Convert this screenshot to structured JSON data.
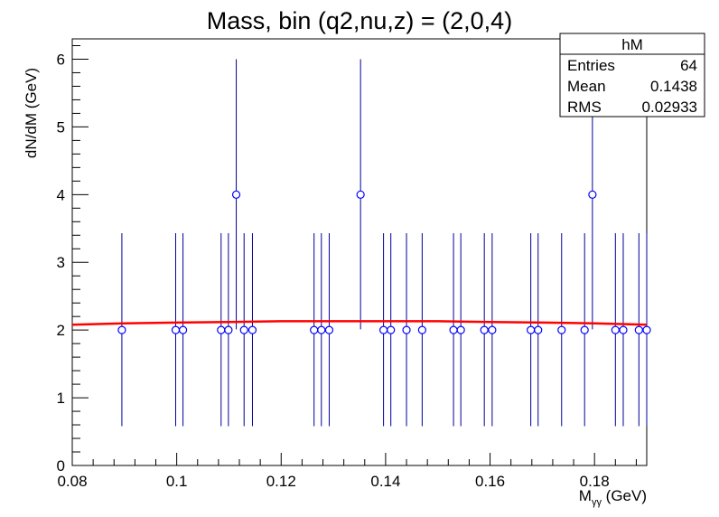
{
  "chart_data": {
    "type": "scatter",
    "title": "Mass, bin (q2,nu,z) = (2,0,4)",
    "xlabel_main": "M",
    "xlabel_sub": "γγ",
    "xlabel_unit": " (GeV)",
    "ylabel": "dN/dM (GeV)",
    "xlim": [
      0.08,
      0.19
    ],
    "ylim": [
      0,
      6.3
    ],
    "x_ticks": [
      0.08,
      0.1,
      0.12,
      0.14,
      0.16,
      0.18
    ],
    "x_tick_labels": [
      "0.08",
      "0.1",
      "0.12",
      "0.14",
      "0.16",
      "0.18"
    ],
    "y_ticks": [
      0,
      1,
      2,
      3,
      4,
      5,
      6
    ],
    "y_tick_labels": [
      "0",
      "1",
      "2",
      "3",
      "4",
      "5",
      "6"
    ],
    "grid": false,
    "series": [
      {
        "points": [
          {
            "x": 0.0895,
            "y": 2,
            "err_lo": 1.42,
            "err_hi": 1.43
          },
          {
            "x": 0.0998,
            "y": 2,
            "err_lo": 1.42,
            "err_hi": 1.43
          },
          {
            "x": 0.1012,
            "y": 2,
            "err_lo": 1.42,
            "err_hi": 1.43
          },
          {
            "x": 0.1085,
            "y": 2,
            "err_lo": 1.42,
            "err_hi": 1.43
          },
          {
            "x": 0.1099,
            "y": 2,
            "err_lo": 1.42,
            "err_hi": 1.43
          },
          {
            "x": 0.1114,
            "y": 4,
            "err_lo": 1.99,
            "err_hi": 2.0
          },
          {
            "x": 0.1129,
            "y": 2,
            "err_lo": 1.42,
            "err_hi": 1.43
          },
          {
            "x": 0.1145,
            "y": 2,
            "err_lo": 1.42,
            "err_hi": 1.43
          },
          {
            "x": 0.1263,
            "y": 2,
            "err_lo": 1.42,
            "err_hi": 1.43
          },
          {
            "x": 0.1277,
            "y": 2,
            "err_lo": 1.42,
            "err_hi": 1.43
          },
          {
            "x": 0.1292,
            "y": 2,
            "err_lo": 1.42,
            "err_hi": 1.43
          },
          {
            "x": 0.1352,
            "y": 4,
            "err_lo": 1.99,
            "err_hi": 2.0
          },
          {
            "x": 0.1396,
            "y": 2,
            "err_lo": 1.42,
            "err_hi": 1.43
          },
          {
            "x": 0.141,
            "y": 2,
            "err_lo": 1.42,
            "err_hi": 1.43
          },
          {
            "x": 0.144,
            "y": 2,
            "err_lo": 1.42,
            "err_hi": 1.43
          },
          {
            "x": 0.147,
            "y": 2,
            "err_lo": 1.42,
            "err_hi": 1.43
          },
          {
            "x": 0.153,
            "y": 2,
            "err_lo": 1.42,
            "err_hi": 1.43
          },
          {
            "x": 0.1544,
            "y": 2,
            "err_lo": 1.42,
            "err_hi": 1.43
          },
          {
            "x": 0.1589,
            "y": 2,
            "err_lo": 1.42,
            "err_hi": 1.43
          },
          {
            "x": 0.1604,
            "y": 2,
            "err_lo": 1.42,
            "err_hi": 1.43
          },
          {
            "x": 0.1678,
            "y": 2,
            "err_lo": 1.42,
            "err_hi": 1.43
          },
          {
            "x": 0.1692,
            "y": 2,
            "err_lo": 1.42,
            "err_hi": 1.43
          },
          {
            "x": 0.1737,
            "y": 2,
            "err_lo": 1.42,
            "err_hi": 1.43
          },
          {
            "x": 0.1781,
            "y": 2,
            "err_lo": 1.42,
            "err_hi": 1.43
          },
          {
            "x": 0.1796,
            "y": 4,
            "err_lo": 1.99,
            "err_hi": 2.0
          },
          {
            "x": 0.184,
            "y": 2,
            "err_lo": 1.42,
            "err_hi": 1.43
          },
          {
            "x": 0.1855,
            "y": 2,
            "err_lo": 1.42,
            "err_hi": 1.43
          },
          {
            "x": 0.1885,
            "y": 2,
            "err_lo": 1.42,
            "err_hi": 1.43
          },
          {
            "x": 0.19,
            "y": 2,
            "err_lo": 1.42,
            "err_hi": 1.43
          }
        ]
      }
    ],
    "fit_curve": {
      "x": [
        0.08,
        0.09,
        0.1,
        0.11,
        0.12,
        0.13,
        0.14,
        0.15,
        0.16,
        0.17,
        0.18,
        0.19
      ],
      "y": [
        2.08,
        2.1,
        2.11,
        2.12,
        2.13,
        2.13,
        2.13,
        2.13,
        2.12,
        2.11,
        2.1,
        2.08
      ]
    },
    "stats_box": {
      "name": "hM",
      "rows": [
        {
          "label": "Entries",
          "value": "64"
        },
        {
          "label": "Mean",
          "value": "0.1438"
        },
        {
          "label": "RMS",
          "value": "0.02933"
        }
      ]
    },
    "colors": {
      "points": "#0000ff",
      "errorbars": "#000099",
      "fit": "#ff0000",
      "axes": "#000000"
    }
  }
}
